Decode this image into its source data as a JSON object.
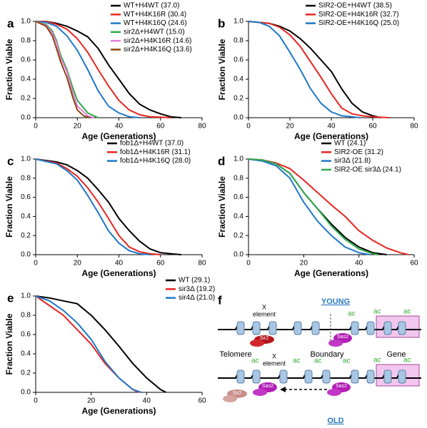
{
  "chart_data": [
    {
      "type": "line",
      "panel": "a",
      "x_label": "Age (Generations)",
      "y_label": "Fraction Viable",
      "xlim": [
        0,
        80
      ],
      "xticks": [
        0,
        20,
        40,
        60,
        80
      ],
      "ylim": [
        0,
        1
      ],
      "yticks": [
        {
          "value": 0,
          "label": "0.0"
        },
        0.2,
        0.4,
        0.6,
        0.8,
        {
          "value": 1,
          "label": "1.0"
        }
      ],
      "legend": "upper right",
      "series": [
        {
          "name": "WT+H4WT (37.0)",
          "color": "#000000",
          "x": [
            0,
            5,
            10,
            15,
            20,
            25,
            30,
            35,
            40,
            45,
            50,
            55,
            60,
            65,
            70
          ],
          "values": [
            1,
            1,
            0.98,
            0.95,
            0.9,
            0.84,
            0.72,
            0.55,
            0.4,
            0.25,
            0.14,
            0.08,
            0.04,
            0.01,
            0
          ]
        },
        {
          "name": "WT+H4K16R (30.4)",
          "color": "#e8251f",
          "x": [
            0,
            5,
            10,
            15,
            20,
            25,
            30,
            35,
            40,
            45,
            50,
            55,
            60,
            65
          ],
          "values": [
            1,
            1,
            0.97,
            0.92,
            0.82,
            0.68,
            0.5,
            0.33,
            0.18,
            0.08,
            0.03,
            0.01,
            0.005,
            0
          ]
        },
        {
          "name": "WT+H4K16Q (24.6)",
          "color": "#1f78c8",
          "x": [
            0,
            5,
            10,
            15,
            20,
            25,
            30,
            35,
            40,
            45,
            50
          ],
          "values": [
            1,
            0.99,
            0.95,
            0.85,
            0.7,
            0.5,
            0.28,
            0.12,
            0.05,
            0.01,
            0
          ]
        },
        {
          "name": "sir2Δ+H4WT (15.0)",
          "color": "#2eaa4a",
          "x": [
            0,
            5,
            8,
            10,
            12,
            15,
            18,
            20,
            25,
            30
          ],
          "values": [
            1,
            0.97,
            0.9,
            0.8,
            0.65,
            0.5,
            0.3,
            0.18,
            0.05,
            0
          ]
        },
        {
          "name": "sir2Δ+H4K16R (14.6)",
          "color": "#e77fd9",
          "x": [
            0,
            5,
            8,
            10,
            12,
            15,
            18,
            20,
            25,
            28
          ],
          "values": [
            1,
            0.96,
            0.88,
            0.78,
            0.62,
            0.48,
            0.25,
            0.12,
            0.02,
            0
          ]
        },
        {
          "name": "sir2Δ+H4K16Q (13.6)",
          "color": "#8b4513",
          "x": [
            0,
            5,
            8,
            10,
            12,
            15,
            18,
            20,
            23,
            26
          ],
          "values": [
            1,
            0.95,
            0.85,
            0.72,
            0.58,
            0.42,
            0.2,
            0.08,
            0.02,
            0
          ]
        }
      ]
    },
    {
      "type": "line",
      "panel": "b",
      "x_label": "Age (Generations)",
      "y_label": "Fraction Viable",
      "xlim": [
        0,
        80
      ],
      "xticks": [
        0,
        20,
        40,
        60,
        80
      ],
      "ylim": [
        0,
        1
      ],
      "yticks": [
        {
          "value": 0,
          "label": "0.0"
        },
        0.2,
        0.4,
        0.6,
        0.8,
        {
          "value": 1,
          "label": "1.0"
        }
      ],
      "legend": "upper right",
      "series": [
        {
          "name": "SIR2-OE+H4WT (38.5)",
          "color": "#000000",
          "x": [
            0,
            10,
            15,
            20,
            25,
            30,
            35,
            40,
            45,
            50,
            55,
            60,
            64
          ],
          "values": [
            1,
            0.98,
            0.95,
            0.9,
            0.82,
            0.72,
            0.6,
            0.48,
            0.3,
            0.15,
            0.06,
            0.02,
            0
          ]
        },
        {
          "name": "SIR2-OE+H4K16R (32.7)",
          "color": "#e8251f",
          "x": [
            0,
            10,
            15,
            20,
            25,
            30,
            35,
            40,
            45,
            50,
            55,
            60,
            68
          ],
          "values": [
            1,
            0.98,
            0.94,
            0.86,
            0.74,
            0.58,
            0.42,
            0.25,
            0.1,
            0.04,
            0.02,
            0.01,
            0
          ]
        },
        {
          "name": "SIR2-OE+H4K16Q (25.0)",
          "color": "#1f78c8",
          "x": [
            0,
            5,
            10,
            15,
            20,
            25,
            30,
            35,
            40,
            45,
            50,
            54
          ],
          "values": [
            1,
            0.99,
            0.95,
            0.85,
            0.68,
            0.5,
            0.3,
            0.15,
            0.06,
            0.02,
            0.01,
            0
          ]
        }
      ]
    },
    {
      "type": "line",
      "panel": "c",
      "x_label": "Age (Generations)",
      "y_label": "Fraction Viable",
      "xlim": [
        0,
        80
      ],
      "xticks": [
        0,
        20,
        40,
        60,
        80
      ],
      "ylim": [
        0,
        1
      ],
      "yticks": [
        {
          "value": 0,
          "label": "0.0"
        },
        0.2,
        0.4,
        0.6,
        0.8,
        {
          "value": 1,
          "label": "1.0"
        }
      ],
      "legend": "upper right",
      "series": [
        {
          "name": "fob1Δ+H4WT (37.0)",
          "color": "#000000",
          "x": [
            0,
            10,
            15,
            20,
            25,
            30,
            35,
            40,
            45,
            50,
            55,
            60,
            65,
            70
          ],
          "values": [
            1,
            0.97,
            0.94,
            0.88,
            0.8,
            0.68,
            0.55,
            0.38,
            0.25,
            0.14,
            0.06,
            0.02,
            0.01,
            0
          ]
        },
        {
          "name": "fob1Δ+H4K16R (31.1)",
          "color": "#e8251f",
          "x": [
            0,
            10,
            15,
            20,
            25,
            30,
            35,
            40,
            45,
            50,
            55,
            60
          ],
          "values": [
            1,
            0.96,
            0.9,
            0.82,
            0.7,
            0.55,
            0.38,
            0.2,
            0.08,
            0.03,
            0.01,
            0
          ]
        },
        {
          "name": "fob1Δ+H4K16Q (28.0)",
          "color": "#1f78c8",
          "x": [
            0,
            10,
            15,
            20,
            25,
            30,
            35,
            40,
            45,
            50,
            55
          ],
          "values": [
            1,
            0.95,
            0.88,
            0.78,
            0.62,
            0.44,
            0.25,
            0.12,
            0.04,
            0.01,
            0
          ]
        }
      ]
    },
    {
      "type": "line",
      "panel": "d",
      "x_label": "Age (Generations)",
      "y_label": "Fraction Viable",
      "xlim": [
        0,
        60
      ],
      "xticks": [
        0,
        20,
        40,
        60
      ],
      "ylim": [
        0,
        1
      ],
      "yticks": [
        {
          "value": 0,
          "label": "0.0"
        },
        0.2,
        0.4,
        0.6,
        0.8,
        {
          "value": 1,
          "label": "1.0"
        }
      ],
      "legend": "upper right",
      "series": [
        {
          "name": "WT (24.1)",
          "color": "#000000",
          "x": [
            0,
            5,
            10,
            15,
            20,
            25,
            30,
            35,
            40,
            45,
            50
          ],
          "values": [
            1,
            0.99,
            0.95,
            0.85,
            0.65,
            0.48,
            0.32,
            0.18,
            0.08,
            0.02,
            0
          ]
        },
        {
          "name": "SIR2-OE (31.2)",
          "color": "#e8251f",
          "x": [
            0,
            5,
            10,
            15,
            20,
            25,
            30,
            35,
            40,
            45,
            50,
            55,
            58
          ],
          "values": [
            1,
            0.99,
            0.96,
            0.9,
            0.78,
            0.65,
            0.52,
            0.4,
            0.25,
            0.15,
            0.07,
            0.02,
            0
          ]
        },
        {
          "name": "sir3Δ (21.8)",
          "color": "#1f78c8",
          "x": [
            0,
            5,
            10,
            15,
            20,
            25,
            30,
            35,
            40,
            44
          ],
          "values": [
            1,
            0.98,
            0.93,
            0.8,
            0.55,
            0.35,
            0.2,
            0.08,
            0.02,
            0
          ]
        },
        {
          "name": "SIR2-OE sir3Δ (24.1)",
          "color": "#2eaa4a",
          "x": [
            0,
            5,
            10,
            15,
            20,
            25,
            30,
            35,
            40,
            45,
            47
          ],
          "values": [
            1,
            0.99,
            0.95,
            0.85,
            0.65,
            0.48,
            0.3,
            0.16,
            0.06,
            0.01,
            0
          ]
        }
      ]
    },
    {
      "type": "line",
      "panel": "e",
      "x_label": "Age (Generations)",
      "y_label": "Fraction Viable",
      "xlim": [
        0,
        60
      ],
      "xticks": [
        0,
        20,
        40,
        60
      ],
      "ylim": [
        0,
        1
      ],
      "yticks": [
        {
          "value": 0,
          "label": "0.0"
        },
        0.2,
        0.4,
        0.6,
        0.8,
        {
          "value": 1,
          "label": "1.0"
        }
      ],
      "legend": "upper right",
      "series": [
        {
          "name": "WT (29.1)",
          "color": "#000000",
          "x": [
            0,
            5,
            10,
            15,
            20,
            25,
            30,
            35,
            40,
            45,
            47
          ],
          "values": [
            1,
            0.98,
            0.95,
            0.92,
            0.8,
            0.65,
            0.48,
            0.3,
            0.15,
            0.03,
            0
          ]
        },
        {
          "name": "sir3Δ (19.2)",
          "color": "#e8251f",
          "x": [
            0,
            5,
            10,
            15,
            20,
            25,
            30,
            35,
            37
          ],
          "values": [
            1,
            0.9,
            0.8,
            0.65,
            0.5,
            0.3,
            0.15,
            0.03,
            0
          ]
        },
        {
          "name": "sir4Δ (21.0)",
          "color": "#1f78c8",
          "x": [
            0,
            5,
            10,
            15,
            20,
            25,
            30,
            35,
            38
          ],
          "values": [
            1,
            0.95,
            0.85,
            0.72,
            0.55,
            0.32,
            0.15,
            0.03,
            0
          ]
        }
      ]
    }
  ],
  "diagram": {
    "panel": "f",
    "young": "YOUNG",
    "old": "OLD",
    "x_element": [
      "X",
      "element"
    ],
    "telomere": "Telomere",
    "boundary": "Boundary",
    "gene": "Gene",
    "sir2": "Sir2",
    "sas2": "Sas2",
    "ac": "ac"
  }
}
